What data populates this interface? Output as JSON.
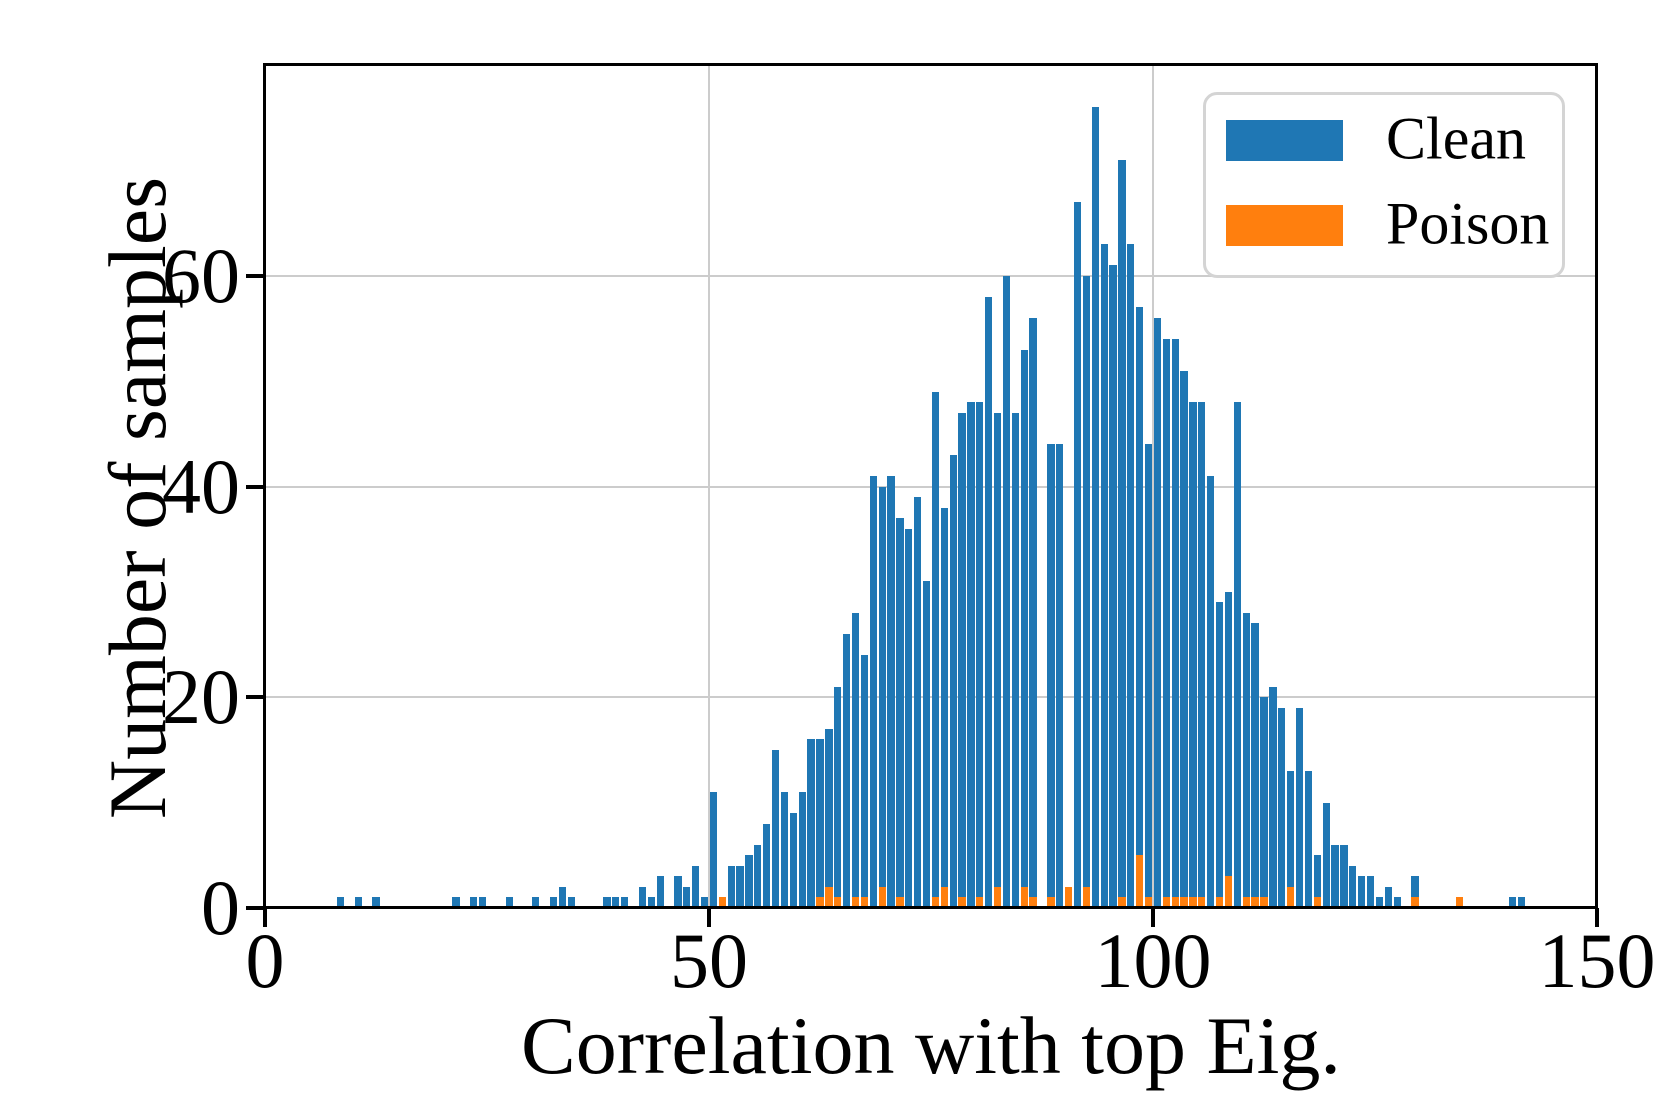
{
  "axes": {
    "xlabel": "Correlation with top Eig.",
    "ylabel": "Number of samples",
    "x_tick_labels": [
      "0",
      "50",
      "100",
      "150"
    ],
    "x_tick_values": [
      0,
      50,
      100,
      150
    ],
    "y_tick_labels": [
      "0",
      "20",
      "40",
      "60"
    ],
    "y_tick_values": [
      0,
      20,
      40,
      60
    ],
    "x_gridlines": [
      50,
      100
    ],
    "y_gridlines": [
      20,
      40,
      60
    ],
    "xlim": [
      0,
      150
    ],
    "ylim": [
      0,
      80
    ]
  },
  "legend": {
    "items": [
      {
        "label": "Clean",
        "color": "#1f77b4"
      },
      {
        "label": "Poison",
        "color": "#ff7f0e"
      }
    ]
  },
  "colors": {
    "clean": "#1f77b4",
    "poison": "#ff7f0e",
    "grid": "#cccccc",
    "spine": "#000000",
    "background": "#ffffff"
  },
  "chart_data": {
    "type": "bar",
    "subtype": "histogram-overlaid",
    "title": "",
    "xlabel": "Correlation with top Eig.",
    "ylabel": "Number of samples",
    "xlim": [
      0,
      150
    ],
    "ylim": [
      0,
      80
    ],
    "grid": true,
    "legend_position": "upper right",
    "bin_width": 1,
    "series_names": [
      "Clean",
      "Poison"
    ],
    "bins_format": [
      "x",
      "clean_count",
      "poison_count"
    ],
    "bins": [
      [
        8,
        1,
        0
      ],
      [
        10,
        1,
        0
      ],
      [
        12,
        1,
        0
      ],
      [
        21,
        1,
        0
      ],
      [
        23,
        1,
        0
      ],
      [
        24,
        1,
        0
      ],
      [
        27,
        1,
        0
      ],
      [
        30,
        1,
        0
      ],
      [
        32,
        1,
        0
      ],
      [
        33,
        2,
        0
      ],
      [
        34,
        1,
        0
      ],
      [
        38,
        1,
        0
      ],
      [
        39,
        1,
        0
      ],
      [
        40,
        1,
        0
      ],
      [
        42,
        2,
        0
      ],
      [
        43,
        1,
        0
      ],
      [
        44,
        3,
        0
      ],
      [
        46,
        3,
        0
      ],
      [
        47,
        2,
        0
      ],
      [
        48,
        4,
        0
      ],
      [
        49,
        1,
        0
      ],
      [
        50,
        11,
        0
      ],
      [
        51,
        1,
        1
      ],
      [
        52,
        4,
        0
      ],
      [
        53,
        4,
        0
      ],
      [
        54,
        5,
        0
      ],
      [
        55,
        6,
        0
      ],
      [
        56,
        8,
        0
      ],
      [
        57,
        15,
        0
      ],
      [
        58,
        11,
        0
      ],
      [
        59,
        9,
        0
      ],
      [
        60,
        11,
        0
      ],
      [
        61,
        16,
        0
      ],
      [
        62,
        16,
        1
      ],
      [
        63,
        17,
        2
      ],
      [
        64,
        21,
        1
      ],
      [
        65,
        26,
        0
      ],
      [
        66,
        28,
        1
      ],
      [
        67,
        24,
        1
      ],
      [
        68,
        41,
        0
      ],
      [
        69,
        40,
        2
      ],
      [
        70,
        41,
        0
      ],
      [
        71,
        37,
        1
      ],
      [
        72,
        36,
        0
      ],
      [
        73,
        39,
        0
      ],
      [
        74,
        31,
        0
      ],
      [
        75,
        49,
        1
      ],
      [
        76,
        38,
        2
      ],
      [
        77,
        43,
        0
      ],
      [
        78,
        47,
        1
      ],
      [
        79,
        48,
        0
      ],
      [
        80,
        48,
        1
      ],
      [
        81,
        58,
        0
      ],
      [
        82,
        47,
        2
      ],
      [
        83,
        60,
        0
      ],
      [
        84,
        47,
        0
      ],
      [
        85,
        53,
        2
      ],
      [
        86,
        56,
        1
      ],
      [
        88,
        44,
        1
      ],
      [
        89,
        44,
        0
      ],
      [
        90,
        0,
        2
      ],
      [
        91,
        67,
        0
      ],
      [
        92,
        60,
        2
      ],
      [
        93,
        76,
        0
      ],
      [
        94,
        63,
        0
      ],
      [
        95,
        61,
        0
      ],
      [
        96,
        71,
        1
      ],
      [
        97,
        63,
        0
      ],
      [
        98,
        57,
        5
      ],
      [
        99,
        44,
        1
      ],
      [
        100,
        56,
        0
      ],
      [
        101,
        54,
        1
      ],
      [
        102,
        54,
        1
      ],
      [
        103,
        51,
        1
      ],
      [
        104,
        48,
        1
      ],
      [
        105,
        48,
        1
      ],
      [
        106,
        41,
        0
      ],
      [
        107,
        29,
        1
      ],
      [
        108,
        30,
        3
      ],
      [
        109,
        48,
        0
      ],
      [
        110,
        28,
        1
      ],
      [
        111,
        27,
        1
      ],
      [
        112,
        20,
        1
      ],
      [
        113,
        21,
        0
      ],
      [
        114,
        19,
        0
      ],
      [
        115,
        13,
        2
      ],
      [
        116,
        19,
        0
      ],
      [
        117,
        13,
        0
      ],
      [
        118,
        5,
        1
      ],
      [
        119,
        10,
        0
      ],
      [
        120,
        6,
        0
      ],
      [
        121,
        6,
        0
      ],
      [
        122,
        4,
        0
      ],
      [
        123,
        3,
        0
      ],
      [
        124,
        3,
        0
      ],
      [
        125,
        1,
        0
      ],
      [
        126,
        2,
        0
      ],
      [
        127,
        1,
        0
      ],
      [
        129,
        3,
        1
      ],
      [
        134,
        0,
        1
      ],
      [
        140,
        1,
        0
      ],
      [
        141,
        1,
        0
      ]
    ]
  }
}
